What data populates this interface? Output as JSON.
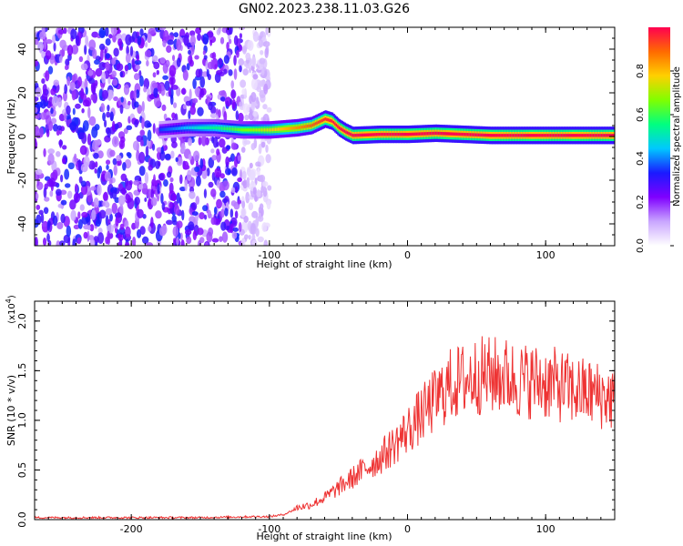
{
  "figure": {
    "title": "GN02.2023.238.11.03.G26"
  },
  "chart_data": [
    {
      "type": "heatmap",
      "xlabel": "Height of straight line (km)",
      "ylabel": "Frequency (Hz)",
      "xlim": [
        -270,
        150
      ],
      "ylim": [
        -50,
        50
      ],
      "x_ticks": [
        -200,
        -100,
        0,
        100
      ],
      "x_tick_labels": [
        "-200",
        "-100",
        "0",
        "100"
      ],
      "y_ticks": [
        -40,
        -20,
        0,
        20,
        40
      ],
      "y_tick_labels": [
        "-40",
        "-20",
        "0",
        "20",
        "40"
      ],
      "colorbar": {
        "label": "Normalized spectral amplitude",
        "range": [
          0.0,
          1.0
        ],
        "ticks": [
          0.0,
          0.2,
          0.4,
          0.6,
          0.8
        ],
        "tick_labels": [
          "0.0",
          "0.2",
          "0.4",
          "0.6",
          "0.8"
        ],
        "colormap": [
          "#ffffff",
          "#c9a6ff",
          "#7f00ff",
          "#1a1aff",
          "#00c8ff",
          "#00ff80",
          "#80ff00",
          "#ffd000",
          "#ff6a00",
          "#ff0050"
        ]
      },
      "ridge": {
        "x": [
          -180,
          -160,
          -140,
          -120,
          -100,
          -80,
          -70,
          -60,
          -55,
          -50,
          -45,
          -40,
          -20,
          0,
          20,
          40,
          60,
          80,
          100,
          120,
          150
        ],
        "freq_hz": [
          3,
          4,
          4,
          3,
          3,
          4,
          5,
          8,
          7,
          4,
          2,
          0.5,
          1,
          1,
          1.5,
          1,
          0.5,
          0.5,
          0.5,
          0.5,
          0.5
        ]
      },
      "noise_region_x": [
        -270,
        -100
      ],
      "grid": false
    },
    {
      "type": "line",
      "xlabel": "Height of straight line (km)",
      "ylabel": "SNR (10 * v/v)",
      "y_scale_label": "(x10",
      "y_scale_exponent": "4",
      "y_scale_suffix": ")",
      "xlim": [
        -270,
        150
      ],
      "ylim": [
        0,
        2.2
      ],
      "x_ticks": [
        -200,
        -100,
        0,
        100
      ],
      "x_tick_labels": [
        "-200",
        "-100",
        "0",
        "100"
      ],
      "y_ticks": [
        0.0,
        0.5,
        1.0,
        1.5,
        2.0
      ],
      "y_tick_labels": [
        "0.0",
        "0.5",
        "1.0",
        "1.5",
        "2.0"
      ],
      "series": [
        {
          "color": "#ee3333",
          "x": [
            -270,
            -250,
            -200,
            -150,
            -110,
            -100,
            -90,
            -85,
            -80,
            -70,
            -60,
            -50,
            -40,
            -30,
            -20,
            -10,
            0,
            10,
            20,
            30,
            40,
            50,
            60,
            70,
            80,
            90,
            100,
            110,
            120,
            130,
            140,
            150
          ],
          "y": [
            0.02,
            0.02,
            0.02,
            0.02,
            0.03,
            0.03,
            0.05,
            0.08,
            0.12,
            0.15,
            0.22,
            0.32,
            0.42,
            0.52,
            0.62,
            0.75,
            0.9,
            1.05,
            1.2,
            1.35,
            1.4,
            1.45,
            1.45,
            1.45,
            1.4,
            1.4,
            1.38,
            1.35,
            1.3,
            1.28,
            1.25,
            1.22
          ]
        }
      ],
      "grid": false
    }
  ]
}
